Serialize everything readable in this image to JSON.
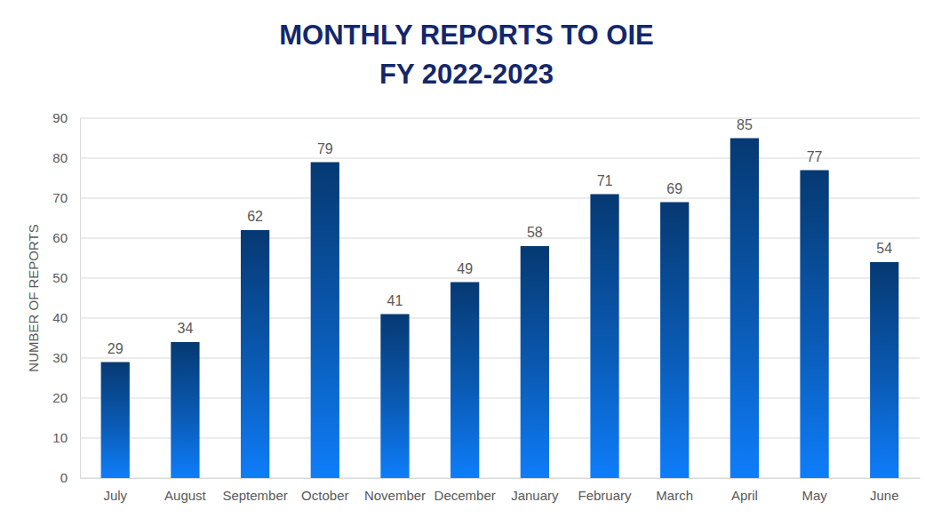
{
  "chart_data": {
    "type": "bar",
    "title": "MONTHLY REPORTS TO OIE\nFY 2022-2023",
    "y_label": "NUMBER OF REPORTS",
    "categories": [
      "July",
      "August",
      "September",
      "October",
      "November",
      "December",
      "January",
      "February",
      "March",
      "April",
      "May",
      "June"
    ],
    "values": [
      29,
      34,
      62,
      79,
      41,
      49,
      58,
      71,
      69,
      85,
      77,
      54
    ],
    "color": "#0a5bb5",
    "ylim": [
      0,
      90
    ],
    "yticks": [
      0,
      10,
      20,
      30,
      40,
      50,
      60,
      70,
      80,
      90
    ],
    "grid": true,
    "data_labels": true
  }
}
